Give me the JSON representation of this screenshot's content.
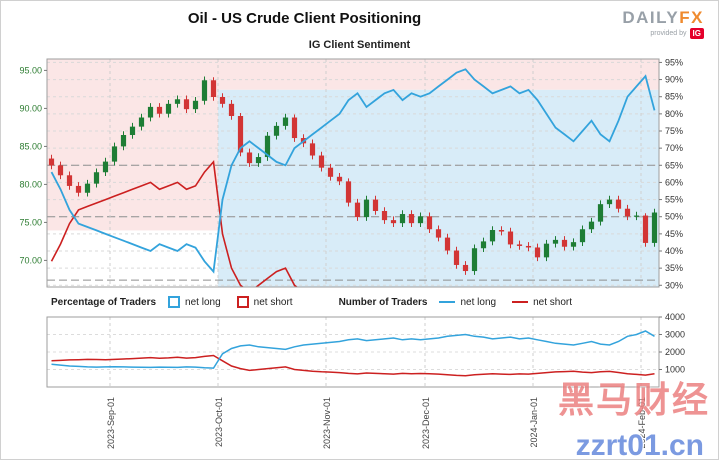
{
  "header": {
    "title": "Oil - US Crude Client Positioning",
    "subtitle": "IG Client Sentiment",
    "logo": {
      "daily": "DAILY",
      "fx": "FX",
      "provided_by": "provided by",
      "ig": "IG"
    }
  },
  "legend": {
    "pct_title": "Percentage of Traders",
    "pct_long": "net long",
    "pct_short": "net short",
    "num_title": "Number of Traders",
    "num_long": "net long",
    "num_short": "net short"
  },
  "watermark": {
    "line1": "黑马财经",
    "line2": "zzrt01.cn"
  },
  "chart_data": {
    "type": "candlestick+line",
    "title": "Oil - US Crude Client Positioning",
    "subtitle": "IG Client Sentiment",
    "x_axis": {
      "tick_labels": [
        "2023-Sep-01",
        "2023-Oct-01",
        "2023-Nov-01",
        "2023-Dec-01",
        "2024-Jan-01",
        "2024-Feb-01"
      ],
      "boundary_indices": [
        7,
        19,
        31,
        42,
        54,
        66
      ]
    },
    "price_axis": {
      "side": "left",
      "min": 66.5,
      "max": 96.5,
      "ticks": [
        95,
        90,
        85,
        80,
        75,
        70
      ],
      "tick_labels": [
        "95.00",
        "90.00",
        "85.00",
        "80.00",
        "75.00",
        "70.00"
      ],
      "color": "#2e7d32"
    },
    "pct_axis": {
      "side": "right",
      "min": 29.5,
      "max": 96,
      "suffix": "%",
      "ticks": [
        95,
        90,
        85,
        80,
        75,
        70,
        65,
        60,
        55,
        50,
        45,
        40,
        35,
        30
      ]
    },
    "reference_pct_lines": [
      65,
      50,
      31.5
    ],
    "background": {
      "split_index": 19,
      "pink": "#fbe6e6",
      "blue": "#d8ecf8",
      "left_pink_bottom_pct": 46,
      "right_pink_top_band_pct": 87
    },
    "candle_colors": {
      "up": "#1e7d35",
      "down": "#d23535"
    },
    "candles": [
      [
        83.4,
        83.9,
        82.0,
        82.5
      ],
      [
        82.5,
        83.0,
        80.7,
        81.2
      ],
      [
        81.2,
        81.7,
        79.3,
        79.8
      ],
      [
        79.8,
        80.3,
        78.4,
        78.9
      ],
      [
        78.9,
        80.6,
        78.4,
        80.1
      ],
      [
        80.1,
        82.1,
        79.6,
        81.6
      ],
      [
        81.6,
        83.5,
        81.1,
        83.0
      ],
      [
        83.0,
        85.5,
        82.5,
        85.0
      ],
      [
        85.0,
        87.0,
        84.5,
        86.5
      ],
      [
        86.5,
        88.1,
        86.0,
        87.6
      ],
      [
        87.6,
        89.3,
        87.1,
        88.8
      ],
      [
        88.8,
        90.7,
        88.3,
        90.2
      ],
      [
        90.2,
        90.7,
        88.8,
        89.3
      ],
      [
        89.3,
        91.1,
        88.8,
        90.6
      ],
      [
        90.6,
        91.7,
        90.1,
        91.2
      ],
      [
        91.2,
        91.7,
        89.4,
        89.9
      ],
      [
        89.9,
        91.5,
        89.4,
        91.0
      ],
      [
        91.0,
        94.2,
        90.5,
        93.7
      ],
      [
        93.7,
        94.1,
        91.0,
        91.5
      ],
      [
        91.5,
        92.0,
        90.1,
        90.6
      ],
      [
        90.6,
        91.1,
        88.5,
        89.0
      ],
      [
        89.0,
        89.4,
        83.7,
        84.2
      ],
      [
        84.2,
        84.7,
        82.3,
        82.8
      ],
      [
        82.8,
        84.1,
        82.3,
        83.6
      ],
      [
        83.6,
        86.9,
        83.1,
        86.4
      ],
      [
        86.4,
        88.2,
        85.9,
        87.7
      ],
      [
        87.7,
        89.3,
        87.2,
        88.8
      ],
      [
        88.8,
        89.2,
        85.6,
        86.1
      ],
      [
        86.1,
        86.6,
        84.9,
        85.4
      ],
      [
        85.4,
        85.9,
        83.3,
        83.8
      ],
      [
        83.8,
        84.3,
        81.7,
        82.2
      ],
      [
        82.2,
        82.7,
        80.5,
        81.0
      ],
      [
        81.0,
        81.5,
        79.9,
        80.4
      ],
      [
        80.4,
        80.8,
        77.1,
        77.6
      ],
      [
        77.6,
        78.1,
        75.2,
        75.7
      ],
      [
        75.7,
        78.5,
        75.2,
        78.0
      ],
      [
        78.0,
        78.5,
        76.0,
        76.5
      ],
      [
        76.5,
        77.0,
        74.8,
        75.3
      ],
      [
        75.3,
        75.8,
        74.4,
        74.9
      ],
      [
        74.9,
        76.6,
        74.4,
        76.1
      ],
      [
        76.1,
        76.6,
        74.4,
        74.9
      ],
      [
        74.9,
        76.3,
        74.4,
        75.8
      ],
      [
        75.8,
        76.3,
        73.6,
        74.1
      ],
      [
        74.1,
        74.6,
        72.5,
        73.0
      ],
      [
        73.0,
        73.5,
        70.8,
        71.3
      ],
      [
        71.3,
        71.8,
        68.9,
        69.4
      ],
      [
        69.4,
        69.9,
        68.1,
        68.6
      ],
      [
        68.6,
        72.1,
        68.1,
        71.6
      ],
      [
        71.6,
        73.0,
        71.1,
        72.5
      ],
      [
        72.5,
        74.5,
        72.0,
        74.0
      ],
      [
        74.0,
        74.5,
        73.3,
        73.8
      ],
      [
        73.8,
        74.3,
        71.6,
        72.1
      ],
      [
        72.1,
        72.6,
        71.4,
        71.9
      ],
      [
        71.9,
        72.4,
        71.2,
        71.7
      ],
      [
        71.7,
        72.2,
        69.9,
        70.4
      ],
      [
        70.4,
        72.7,
        69.9,
        72.2
      ],
      [
        72.2,
        73.2,
        71.7,
        72.7
      ],
      [
        72.7,
        73.2,
        71.3,
        71.8
      ],
      [
        71.8,
        72.9,
        71.3,
        72.4
      ],
      [
        72.4,
        74.6,
        71.9,
        74.1
      ],
      [
        74.1,
        75.6,
        73.6,
        75.1
      ],
      [
        75.1,
        77.9,
        74.6,
        77.4
      ],
      [
        77.4,
        78.5,
        76.9,
        78.0
      ],
      [
        78.0,
        78.5,
        76.3,
        76.8
      ],
      [
        76.8,
        77.3,
        75.3,
        75.8
      ],
      [
        75.8,
        76.4,
        75.3,
        75.9
      ],
      [
        75.9,
        76.2,
        71.8,
        72.3
      ],
      [
        72.3,
        76.8,
        71.8,
        76.3
      ]
    ],
    "sentiment": {
      "long_color": "#33a3dc",
      "short_color": "#cc2020",
      "net_long_pct": [
        63,
        58,
        52,
        48,
        47,
        46,
        45,
        44,
        43,
        42,
        41,
        40,
        42,
        41,
        40,
        42,
        41,
        37,
        34,
        55,
        65,
        70,
        72,
        70,
        68,
        66,
        65,
        70,
        72,
        74,
        76,
        78,
        80,
        84,
        86,
        82,
        84,
        86,
        87,
        84,
        86,
        85,
        86,
        88,
        90,
        92,
        93,
        90,
        88,
        86,
        87,
        88,
        86,
        87,
        84,
        80,
        76,
        74,
        72,
        75,
        78,
        74,
        72,
        78,
        85,
        88,
        91,
        81
      ],
      "net_short_pct": [
        37,
        42,
        48,
        52,
        53,
        54,
        55,
        56,
        57,
        58,
        59,
        60,
        58,
        59,
        60,
        58,
        59,
        63,
        66,
        45,
        35,
        30,
        28,
        30,
        32,
        34,
        35,
        30,
        28,
        26,
        24,
        22,
        20,
        16,
        14,
        18,
        16,
        14,
        13,
        16,
        14,
        15,
        14,
        12,
        10,
        8,
        7,
        10,
        12,
        14,
        13,
        12,
        14,
        13,
        16,
        20,
        24,
        26,
        28,
        25,
        22,
        26,
        28,
        22,
        15,
        12,
        9,
        19
      ]
    },
    "num_traders": {
      "axis": {
        "side": "right",
        "min": 0,
        "max": 4000,
        "ticks": [
          4000,
          3000,
          2000,
          1000
        ]
      },
      "long": [
        1300,
        1250,
        1200,
        1180,
        1150,
        1140,
        1150,
        1160,
        1150,
        1140,
        1130,
        1120,
        1140,
        1130,
        1120,
        1150,
        1140,
        1100,
        1080,
        1900,
        2200,
        2350,
        2400,
        2300,
        2250,
        2200,
        2150,
        2300,
        2400,
        2450,
        2500,
        2550,
        2600,
        2700,
        2750,
        2650,
        2700,
        2750,
        2800,
        2700,
        2750,
        2700,
        2750,
        2800,
        2900,
        2950,
        3000,
        2900,
        2850,
        2750,
        2800,
        2850,
        2750,
        2800,
        2700,
        2600,
        2500,
        2450,
        2400,
        2500,
        2600,
        2450,
        2400,
        2600,
        2900,
        3000,
        3200,
        2900
      ],
      "short": [
        1500,
        1520,
        1550,
        1560,
        1580,
        1570,
        1560,
        1580,
        1600,
        1620,
        1650,
        1680,
        1640,
        1660,
        1700,
        1650,
        1680,
        1750,
        1800,
        1500,
        1200,
        1050,
        950,
        1000,
        1050,
        1100,
        1150,
        1000,
        950,
        900,
        870,
        850,
        820,
        780,
        750,
        800,
        780,
        760,
        740,
        780,
        760,
        770,
        760,
        740,
        700,
        660,
        640,
        700,
        730,
        760,
        740,
        720,
        750,
        740,
        780,
        820,
        860,
        880,
        900,
        850,
        820,
        870,
        890,
        830,
        760,
        720,
        680,
        760
      ]
    }
  }
}
